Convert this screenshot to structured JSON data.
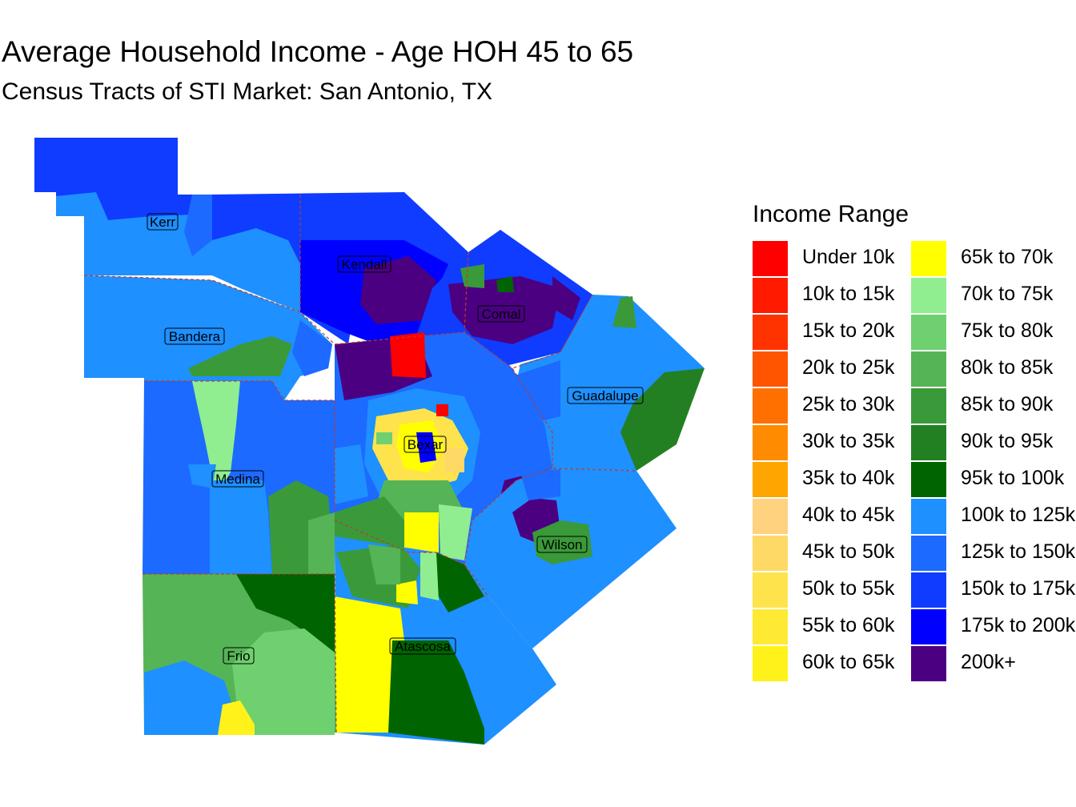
{
  "title": "Average Household Income - Age HOH 45 to 65",
  "subtitle": "Census Tracts of STI Market: San Antonio, TX",
  "legend": {
    "title": "Income Range",
    "items": [
      {
        "label": "Under 10k",
        "color": "#FF0000"
      },
      {
        "label": "10k to 15k",
        "color": "#FF1A00"
      },
      {
        "label": "15k to 20k",
        "color": "#FF3300"
      },
      {
        "label": "20k to 25k",
        "color": "#FF5500"
      },
      {
        "label": "25k to 30k",
        "color": "#FF7000"
      },
      {
        "label": "30k to 35k",
        "color": "#FF8C00"
      },
      {
        "label": "35k to 40k",
        "color": "#FFA500"
      },
      {
        "label": "40k to 45k",
        "color": "#FFD27F"
      },
      {
        "label": "45k to 50k",
        "color": "#FFD966"
      },
      {
        "label": "50k to 55k",
        "color": "#FFE34D"
      },
      {
        "label": "55k to 60k",
        "color": "#FFEA33"
      },
      {
        "label": "60k to 65k",
        "color": "#FFF21A"
      },
      {
        "label": "65k to 70k",
        "color": "#FFFF00"
      },
      {
        "label": "70k to 75k",
        "color": "#90EE90"
      },
      {
        "label": "75k to 80k",
        "color": "#6FD06F"
      },
      {
        "label": "80k to 85k",
        "color": "#55B455"
      },
      {
        "label": "85k to 90k",
        "color": "#3A9A3A"
      },
      {
        "label": "90k to 95k",
        "color": "#228022"
      },
      {
        "label": "95k to 100k",
        "color": "#006400"
      },
      {
        "label": "100k to 125k",
        "color": "#1E90FF"
      },
      {
        "label": "125k to 150k",
        "color": "#1C6AFF"
      },
      {
        "label": "150k to 175k",
        "color": "#0F3CFF"
      },
      {
        "label": "175k to 200k",
        "color": "#0000FF"
      },
      {
        "label": "200k+",
        "color": "#4B0082"
      }
    ]
  },
  "counties": {
    "kerr": "Kerr",
    "kendall": "Kendall",
    "comal": "Comal",
    "bandera": "Bandera",
    "guadalupe": "Guadalupe",
    "bexar": "Bexar",
    "medina": "Medina",
    "wilson": "Wilson",
    "frio": "Frio",
    "atascosa": "Atascosa"
  }
}
